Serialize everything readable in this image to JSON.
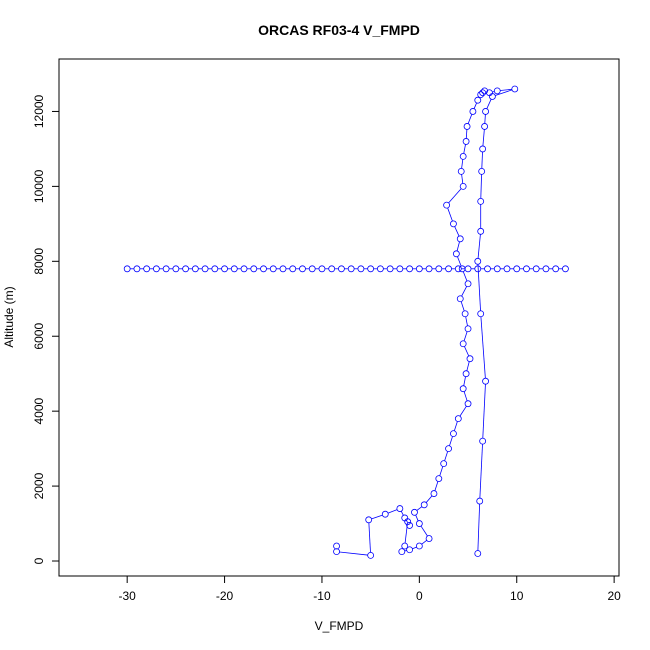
{
  "chart_data": {
    "type": "line",
    "title": "ORCAS RF03-4 V_FMPD",
    "xlabel": "V_FMPD",
    "ylabel": "Altitude (m)",
    "xlim": [
      -37,
      20.5
    ],
    "ylim": [
      -400,
      13400
    ],
    "xticks": [
      -30,
      -20,
      -10,
      0,
      10,
      20
    ],
    "yticks": [
      0,
      2000,
      4000,
      6000,
      8000,
      10000,
      12000
    ],
    "grid": false,
    "legend": "none",
    "marker": "open-circle",
    "color": "#0000ff",
    "series": [
      {
        "x": [
          -8.5,
          -8.5,
          -5,
          -5.2,
          -3.5,
          -2,
          -1.5,
          -1,
          -1.2,
          -1.5,
          -1.8,
          -1,
          0,
          1,
          0,
          -0.5,
          0.5,
          1.5,
          2,
          2.5,
          3,
          3.5,
          4,
          5,
          4.5,
          4.8,
          5.2,
          4.5,
          5,
          4.7,
          4.2,
          5,
          4.4,
          3.8,
          4.2,
          3.5,
          2.8,
          4.5,
          4.3,
          4.5,
          4.8,
          4.9,
          5.5,
          6,
          6.3,
          6.5,
          6.7,
          7.2,
          8,
          9.8,
          7.5,
          6.8,
          6.7,
          6.5,
          6.4,
          6.3,
          6.3,
          6,
          6.3,
          6.8,
          6.5,
          6.2,
          6
        ],
        "y": [
          400,
          250,
          150,
          1100,
          1250,
          1400,
          1150,
          950,
          1050,
          400,
          250,
          300,
          400,
          600,
          1000,
          1300,
          1500,
          1800,
          2200,
          2600,
          3000,
          3400,
          3800,
          4200,
          4600,
          5000,
          5400,
          5800,
          6200,
          6600,
          7000,
          7400,
          7800,
          8200,
          8600,
          9000,
          9500,
          10000,
          10400,
          10800,
          11200,
          11600,
          12000,
          12300,
          12450,
          12500,
          12550,
          12500,
          12550,
          12600,
          12400,
          12000,
          11600,
          11000,
          10400,
          9600,
          8800,
          8000,
          6600,
          4800,
          3200,
          1600,
          200
        ]
      },
      {
        "x": [
          -30,
          -29,
          -28,
          -27,
          -26,
          -25,
          -24,
          -23,
          -22,
          -21,
          -20,
          -19,
          -18,
          -17,
          -16,
          -15,
          -14,
          -13,
          -12,
          -11,
          -10,
          -9,
          -8,
          -7,
          -6,
          -5,
          -4,
          -3,
          -2,
          -1,
          0,
          1,
          2,
          3,
          4,
          5,
          6,
          7,
          8,
          9,
          10,
          11,
          12,
          13,
          14,
          15
        ],
        "y": [
          7800,
          7800,
          7800,
          7800,
          7800,
          7800,
          7800,
          7800,
          7800,
          7800,
          7800,
          7800,
          7800,
          7800,
          7800,
          7800,
          7800,
          7800,
          7800,
          7800,
          7800,
          7800,
          7800,
          7800,
          7800,
          7800,
          7800,
          7800,
          7800,
          7800,
          7800,
          7800,
          7800,
          7800,
          7800,
          7800,
          7800,
          7800,
          7800,
          7800,
          7800,
          7800,
          7800,
          7800,
          7800,
          7800
        ]
      }
    ]
  }
}
